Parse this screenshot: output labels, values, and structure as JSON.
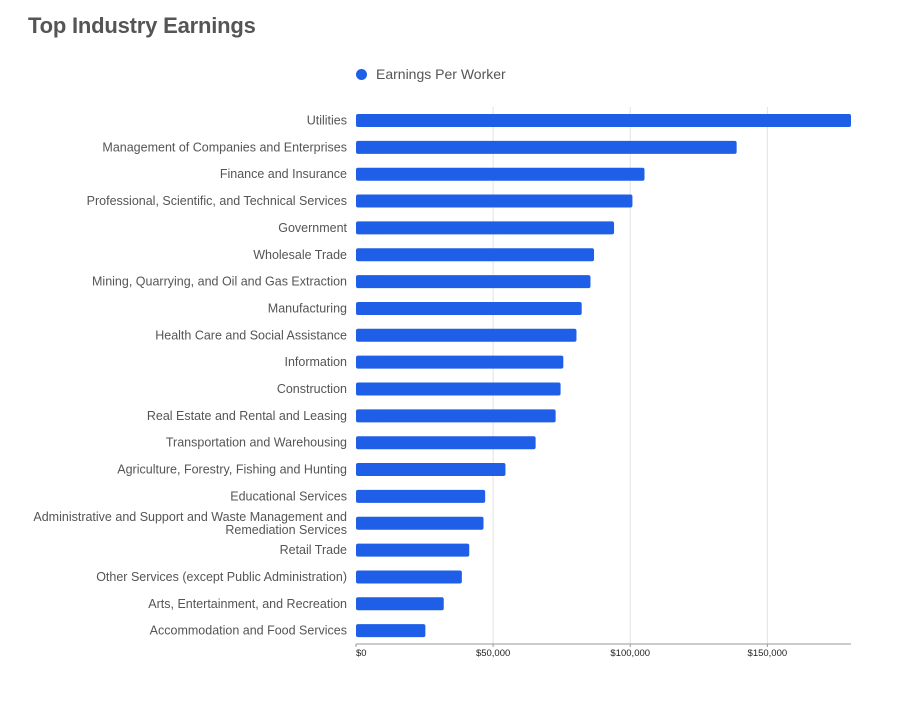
{
  "chart_data": {
    "type": "bar",
    "orientation": "horizontal",
    "title": "Top Industry Earnings",
    "xlabel": "",
    "ylabel": "",
    "categories": [
      "Utilities",
      "Management of Companies and Enterprises",
      "Finance and Insurance",
      "Professional, Scientific, and Technical Services",
      "Government",
      "Wholesale Trade",
      "Mining, Quarrying, and Oil and Gas Extraction",
      "Manufacturing",
      "Health Care and Social Assistance",
      "Information",
      "Construction",
      "Real Estate and Rental and Leasing",
      "Transportation and Warehousing",
      "Agriculture, Forestry, Fishing and Hunting",
      "Educational Services",
      "Administrative and Support and Waste Management and Remediation Services",
      "Retail Trade",
      "Other Services (except Public Administration)",
      "Arts, Entertainment, and Recreation",
      "Accommodation and Food Services"
    ],
    "series": [
      {
        "name": "Earnings Per Worker",
        "color": "#1f5fe8",
        "values": [
          180500,
          138800,
          105200,
          100800,
          94100,
          86800,
          85500,
          82300,
          80400,
          75600,
          74600,
          72800,
          65500,
          54500,
          47100,
          46500,
          41300,
          38600,
          32000,
          25300
        ]
      }
    ],
    "xlim": [
      0,
      180500
    ],
    "xticks": [
      0,
      50000,
      100000,
      150000
    ],
    "xtick_labels": [
      "$0",
      "$50,000",
      "$100,000",
      "$150,000"
    ],
    "grid": "vertical",
    "legend_position": "top"
  }
}
